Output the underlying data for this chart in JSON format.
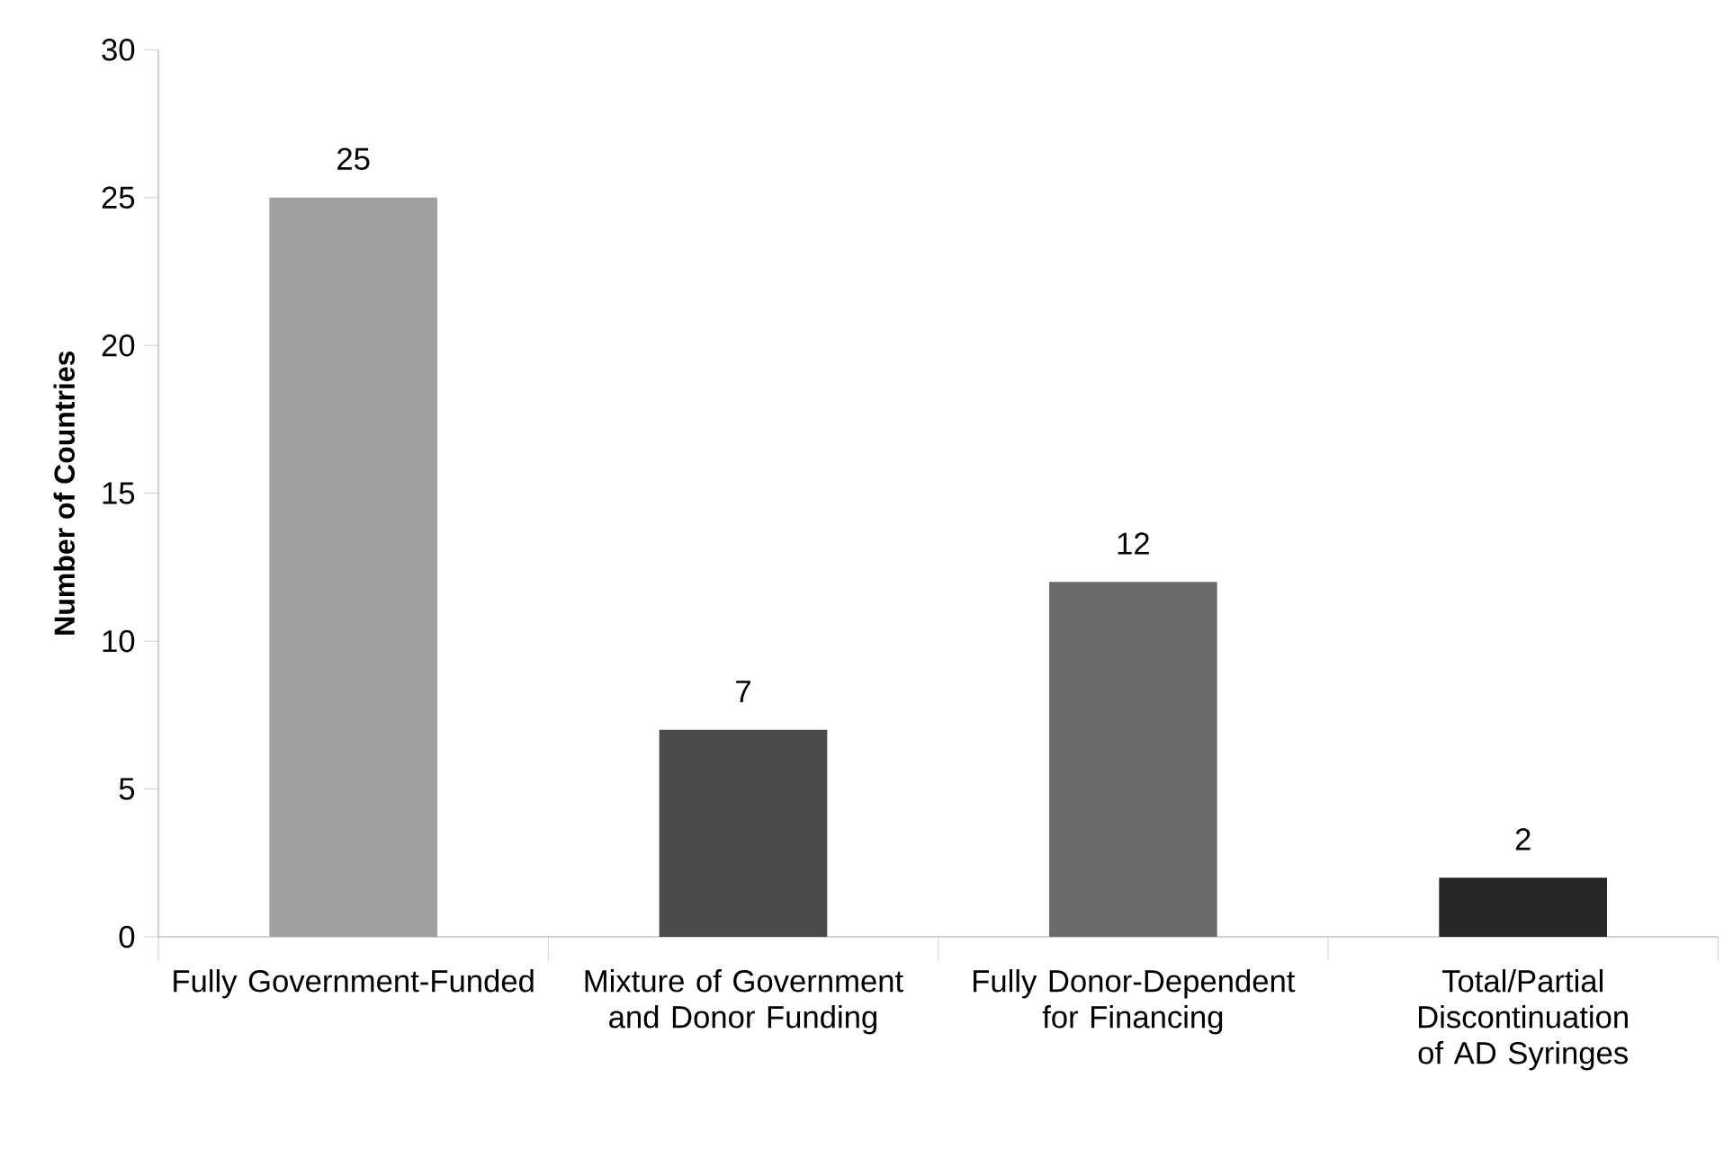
{
  "chart_data": {
    "type": "bar",
    "ylabel": "Number of Countries",
    "categories": [
      "Fully Government-Funded",
      "Mixture of Government and Donor Funding",
      "Fully Donor-Dependent for Financing",
      "Total/Partial Discontinuation of AD Syringes"
    ],
    "values": [
      25,
      7,
      12,
      2
    ],
    "colors": [
      "#a0a0a0",
      "#4a4a4a",
      "#6b6b6b",
      "#262626"
    ],
    "ylim": [
      0,
      30
    ],
    "yticks": [
      0,
      5,
      10,
      15,
      20,
      25,
      30
    ],
    "data_labels": true,
    "grid": false
  }
}
